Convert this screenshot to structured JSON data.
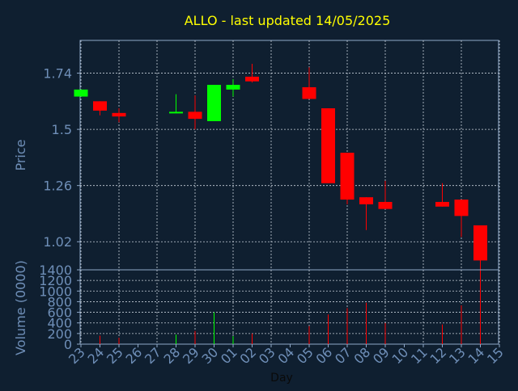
{
  "chart_data": {
    "type": "candlestick",
    "title": "ALLO - last updated 14/05/2025",
    "xlabel": "Day",
    "price_panel": {
      "ylabel": "Price",
      "yticks": [
        "1.74",
        "1.5",
        "1.26",
        "1.02"
      ],
      "ylim": [
        0.9,
        1.88
      ]
    },
    "volume_panel": {
      "ylabel": "Volume (0000)",
      "yticks": [
        "0",
        "200",
        "400",
        "600",
        "800",
        "1000",
        "1200",
        "1400"
      ],
      "ylim": [
        0,
        1400
      ]
    },
    "x_labels": [
      "23",
      "24",
      "25",
      "26",
      "27",
      "28",
      "29",
      "30",
      "01",
      "02",
      "03",
      "04",
      "05",
      "06",
      "07",
      "08",
      "09",
      "10",
      "11",
      "12",
      "13",
      "14",
      "15"
    ],
    "grid": true,
    "candles": [
      {
        "x": "23",
        "open": 1.64,
        "close": 1.67,
        "high": 1.67,
        "low": 1.64,
        "volume": 0
      },
      {
        "x": "24",
        "open": 1.62,
        "close": 1.58,
        "high": 1.62,
        "low": 1.56,
        "volume": 160
      },
      {
        "x": "25",
        "open": 1.57,
        "close": 1.555,
        "high": 1.59,
        "low": 1.53,
        "volume": 120
      },
      {
        "x": "28",
        "open": 1.57,
        "close": 1.575,
        "high": 1.65,
        "low": 1.57,
        "volume": 180
      },
      {
        "x": "29",
        "open": 1.575,
        "close": 1.545,
        "high": 1.645,
        "low": 1.5,
        "volume": 250
      },
      {
        "x": "30",
        "open": 1.535,
        "close": 1.69,
        "high": 1.69,
        "low": 1.535,
        "volume": 600
      },
      {
        "x": "01",
        "open": 1.67,
        "close": 1.69,
        "high": 1.715,
        "low": 1.64,
        "volume": 150
      },
      {
        "x": "02",
        "open": 1.725,
        "close": 1.705,
        "high": 1.78,
        "low": 1.7,
        "volume": 200
      },
      {
        "x": "05",
        "open": 1.68,
        "close": 1.63,
        "high": 1.765,
        "low": 1.63,
        "volume": 340
      },
      {
        "x": "06",
        "open": 1.59,
        "close": 1.27,
        "high": 1.59,
        "low": 1.27,
        "volume": 560
      },
      {
        "x": "07",
        "open": 1.4,
        "close": 1.2,
        "high": 1.4,
        "low": 1.18,
        "volume": 680
      },
      {
        "x": "08",
        "open": 1.21,
        "close": 1.18,
        "high": 1.21,
        "low": 1.07,
        "volume": 780
      },
      {
        "x": "09",
        "open": 1.19,
        "close": 1.16,
        "high": 1.28,
        "low": 1.16,
        "volume": 400
      },
      {
        "x": "12",
        "open": 1.19,
        "close": 1.17,
        "high": 1.27,
        "low": 1.17,
        "volume": 370
      },
      {
        "x": "13",
        "open": 1.2,
        "close": 1.13,
        "high": 1.2,
        "low": 1.04,
        "volume": 730
      },
      {
        "x": "14",
        "open": 1.09,
        "close": 0.94,
        "high": 1.09,
        "low": 0.85,
        "volume": 1320
      }
    ],
    "colors": {
      "up": "#00ff00",
      "down": "#ff0000",
      "title": "#ffff00",
      "axis_text": "#6f8fb8",
      "frame": "#8fa8c8",
      "grid": "#c8d0da",
      "background": "#0f1f30"
    }
  }
}
